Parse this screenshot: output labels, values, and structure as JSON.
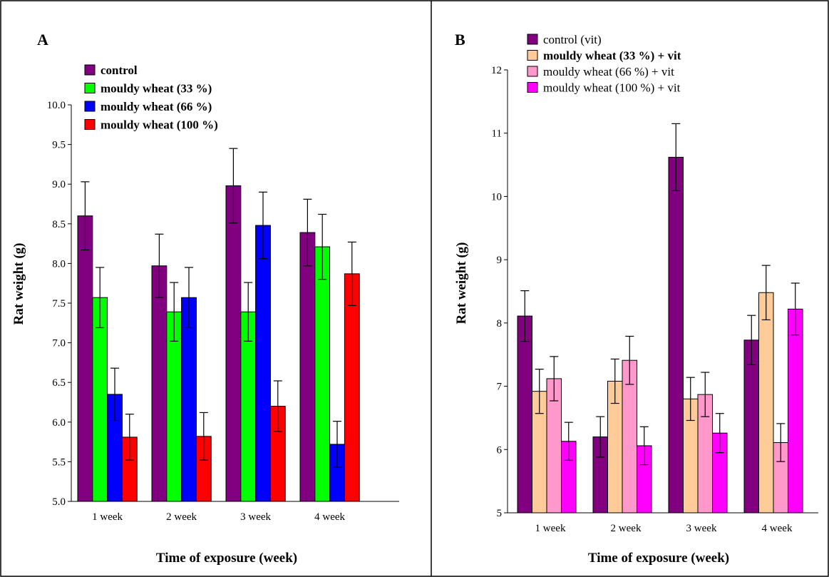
{
  "chart_data": [
    {
      "type": "bar",
      "panel_label": "A",
      "xlabel": "Time of exposure (week)",
      "ylabel": "Rat weight (g)",
      "categories": [
        "1 week",
        "2 week",
        "3 week",
        "4 week"
      ],
      "ylim": [
        5.0,
        10.0
      ],
      "yticks": [
        "5.0",
        "5.5",
        "6.0",
        "6.5",
        "7.0",
        "7.5",
        "8.0",
        "8.5",
        "9.0",
        "9.5",
        "10.0"
      ],
      "legend_position": "top-left",
      "grid": false,
      "series": [
        {
          "name": "control",
          "color": "#800080",
          "label_bold": true,
          "values": [
            8.6,
            7.97,
            8.98,
            8.39
          ],
          "errors": [
            0.43,
            0.4,
            0.47,
            0.42
          ]
        },
        {
          "name": "mouldy wheat (33 %)",
          "color": "#00ff00",
          "label_bold": true,
          "values": [
            7.57,
            7.39,
            7.39,
            8.21
          ],
          "errors": [
            0.38,
            0.37,
            0.37,
            0.41
          ]
        },
        {
          "name": "mouldy wheat (66 %)",
          "color": "#0000ff",
          "label_bold": true,
          "values": [
            6.35,
            7.57,
            8.48,
            5.72
          ],
          "errors": [
            0.33,
            0.38,
            0.42,
            0.29
          ]
        },
        {
          "name": "mouldy wheat (100 %)",
          "color": "#ff0000",
          "label_bold": true,
          "values": [
            5.81,
            5.82,
            6.2,
            7.87
          ],
          "errors": [
            0.29,
            0.3,
            0.32,
            0.4
          ]
        }
      ]
    },
    {
      "type": "bar",
      "panel_label": "B",
      "xlabel": "Time of exposure (week)",
      "ylabel": "Rat weight (g)",
      "categories": [
        "1 week",
        "2 week",
        "3 week",
        "4 week"
      ],
      "ylim": [
        5,
        12
      ],
      "yticks": [
        "5",
        "6",
        "7",
        "8",
        "9",
        "10",
        "11",
        "12"
      ],
      "legend_position": "top-left",
      "grid": false,
      "series": [
        {
          "name": "control (vit)",
          "color": "#800080",
          "label_bold": false,
          "values": [
            8.11,
            6.2,
            10.62,
            7.73
          ],
          "errors": [
            0.4,
            0.32,
            0.53,
            0.39
          ]
        },
        {
          "name": "mouldy wheat (33 %) + vit",
          "color": "#ffcc99",
          "label_bold": true,
          "values": [
            6.92,
            7.08,
            6.8,
            8.48
          ],
          "errors": [
            0.35,
            0.35,
            0.34,
            0.43
          ]
        },
        {
          "name": "mouldy wheat (66 %) + vit",
          "color": "#ff99cc",
          "label_bold": false,
          "values": [
            7.12,
            7.41,
            6.87,
            6.11
          ],
          "errors": [
            0.35,
            0.38,
            0.35,
            0.3
          ]
        },
        {
          "name": "mouldy wheat (100 %) + vit",
          "color": "#ff00ff",
          "label_bold": false,
          "values": [
            6.13,
            6.06,
            6.26,
            8.22
          ],
          "errors": [
            0.3,
            0.3,
            0.31,
            0.41
          ]
        }
      ]
    }
  ]
}
